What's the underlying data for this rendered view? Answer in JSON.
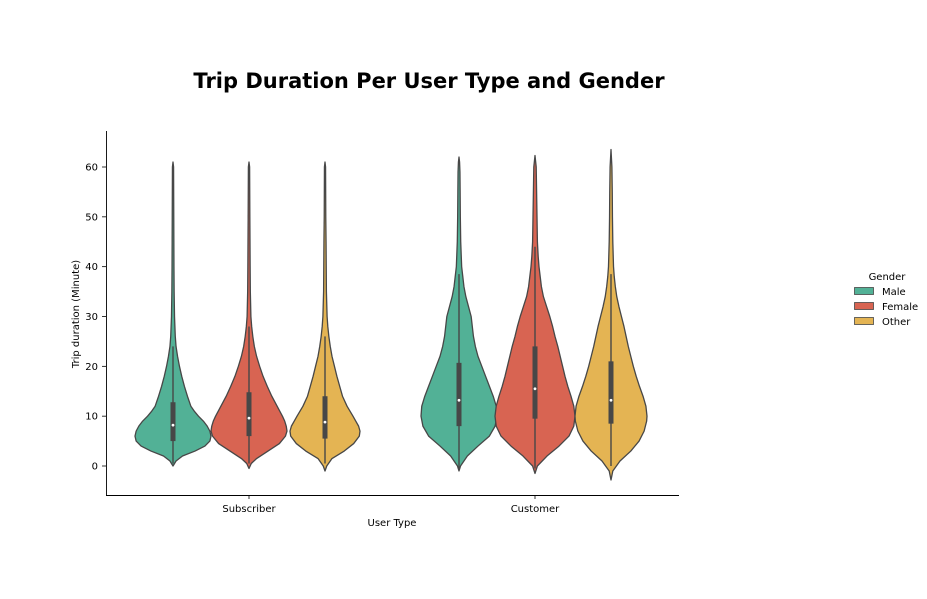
{
  "chart_data": {
    "type": "violin",
    "title": "Trip Duration Per User Type and Gender",
    "xlabel": "User Type",
    "ylabel": "Trip duration (Minute)",
    "categories": [
      "Subscriber",
      "Customer"
    ],
    "ylim": [
      -6,
      67
    ],
    "yticks": [
      0,
      10,
      20,
      30,
      40,
      50,
      60
    ],
    "legend": {
      "title": "Gender",
      "placement": "right"
    },
    "series": [
      {
        "name": "Male",
        "color": "#52b196",
        "violins": [
          {
            "min": 0.0,
            "max": 61.0,
            "median": 8.2,
            "q1": 5.0,
            "q3": 12.8,
            "whisker_low": 0.5,
            "whisker_high": 24.0,
            "profile": [
              [
                0.0,
                0.0
              ],
              [
                1.0,
                0.08
              ],
              [
                2.0,
                0.25
              ],
              [
                3.0,
                0.58
              ],
              [
                4.0,
                0.84
              ],
              [
                5.0,
                0.97
              ],
              [
                6.0,
                1.0
              ],
              [
                7.0,
                0.97
              ],
              [
                8.0,
                0.9
              ],
              [
                9.0,
                0.8
              ],
              [
                10.0,
                0.67
              ],
              [
                11.0,
                0.56
              ],
              [
                12.0,
                0.47
              ],
              [
                14.0,
                0.38
              ],
              [
                16.0,
                0.3
              ],
              [
                18.0,
                0.23
              ],
              [
                20.0,
                0.17
              ],
              [
                22.0,
                0.12
              ],
              [
                24.0,
                0.08
              ],
              [
                26.0,
                0.06
              ],
              [
                30.0,
                0.04
              ],
              [
                35.0,
                0.03
              ],
              [
                40.0,
                0.025
              ],
              [
                50.0,
                0.02
              ],
              [
                60.0,
                0.015
              ],
              [
                61.0,
                0.0
              ]
            ]
          },
          {
            "min": -1.0,
            "max": 62.0,
            "median": 13.2,
            "q1": 8.0,
            "q3": 20.7,
            "whisker_low": -0.5,
            "whisker_high": 38.5,
            "profile": [
              [
                -1.0,
                0.0
              ],
              [
                0.0,
                0.04
              ],
              [
                2.0,
                0.22
              ],
              [
                4.0,
                0.5
              ],
              [
                6.0,
                0.8
              ],
              [
                8.0,
                0.95
              ],
              [
                10.0,
                1.0
              ],
              [
                12.0,
                0.98
              ],
              [
                14.0,
                0.9
              ],
              [
                16.0,
                0.8
              ],
              [
                18.0,
                0.7
              ],
              [
                20.0,
                0.6
              ],
              [
                22.0,
                0.5
              ],
              [
                24.0,
                0.43
              ],
              [
                26.0,
                0.38
              ],
              [
                28.0,
                0.35
              ],
              [
                30.0,
                0.32
              ],
              [
                32.0,
                0.25
              ],
              [
                34.0,
                0.18
              ],
              [
                36.0,
                0.13
              ],
              [
                38.0,
                0.1
              ],
              [
                40.0,
                0.07
              ],
              [
                45.0,
                0.045
              ],
              [
                50.0,
                0.035
              ],
              [
                55.0,
                0.03
              ],
              [
                59.0,
                0.025
              ],
              [
                61.0,
                0.015
              ],
              [
                62.0,
                0.0
              ]
            ]
          }
        ]
      },
      {
        "name": "Female",
        "color": "#d86452",
        "violins": [
          {
            "min": -0.5,
            "max": 61.0,
            "median": 9.6,
            "q1": 6.0,
            "q3": 14.8,
            "whisker_low": 0.5,
            "whisker_high": 28.0,
            "profile": [
              [
                -0.5,
                0.0
              ],
              [
                0.5,
                0.06
              ],
              [
                1.5,
                0.2
              ],
              [
                3.0,
                0.5
              ],
              [
                4.5,
                0.8
              ],
              [
                6.0,
                0.96
              ],
              [
                7.0,
                1.0
              ],
              [
                8.0,
                0.98
              ],
              [
                9.0,
                0.94
              ],
              [
                10.0,
                0.88
              ],
              [
                12.0,
                0.74
              ],
              [
                14.0,
                0.6
              ],
              [
                16.0,
                0.48
              ],
              [
                18.0,
                0.37
              ],
              [
                20.0,
                0.28
              ],
              [
                22.0,
                0.2
              ],
              [
                24.0,
                0.14
              ],
              [
                26.0,
                0.1
              ],
              [
                28.0,
                0.07
              ],
              [
                30.0,
                0.05
              ],
              [
                35.0,
                0.035
              ],
              [
                40.0,
                0.03
              ],
              [
                50.0,
                0.022
              ],
              [
                60.0,
                0.016
              ],
              [
                61.0,
                0.0
              ]
            ]
          },
          {
            "min": -1.5,
            "max": 62.3,
            "median": 15.5,
            "q1": 9.5,
            "q3": 24.0,
            "whisker_low": -0.5,
            "whisker_high": 44.0,
            "profile": [
              [
                -1.5,
                0.0
              ],
              [
                0.0,
                0.06
              ],
              [
                2.0,
                0.3
              ],
              [
                4.0,
                0.6
              ],
              [
                6.0,
                0.85
              ],
              [
                8.0,
                0.97
              ],
              [
                10.0,
                1.0
              ],
              [
                12.0,
                0.97
              ],
              [
                14.0,
                0.9
              ],
              [
                16.0,
                0.82
              ],
              [
                18.0,
                0.75
              ],
              [
                20.0,
                0.69
              ],
              [
                22.0,
                0.63
              ],
              [
                24.0,
                0.57
              ],
              [
                26.0,
                0.5
              ],
              [
                28.0,
                0.44
              ],
              [
                30.0,
                0.37
              ],
              [
                32.0,
                0.29
              ],
              [
                34.0,
                0.21
              ],
              [
                36.0,
                0.16
              ],
              [
                38.0,
                0.13
              ],
              [
                40.0,
                0.1
              ],
              [
                42.0,
                0.08
              ],
              [
                45.0,
                0.06
              ],
              [
                50.0,
                0.05
              ],
              [
                55.0,
                0.04
              ],
              [
                60.0,
                0.03
              ],
              [
                62.3,
                0.0
              ]
            ]
          }
        ]
      },
      {
        "name": "Other",
        "color": "#e4b453",
        "violins": [
          {
            "min": -1.0,
            "max": 61.0,
            "median": 8.8,
            "q1": 5.5,
            "q3": 14.0,
            "whisker_low": 0.5,
            "whisker_high": 26.0,
            "profile": [
              [
                -1.0,
                0.0
              ],
              [
                0.0,
                0.05
              ],
              [
                1.5,
                0.2
              ],
              [
                3.0,
                0.55
              ],
              [
                4.5,
                0.82
              ],
              [
                6.0,
                0.98
              ],
              [
                7.0,
                1.0
              ],
              [
                8.0,
                0.96
              ],
              [
                9.0,
                0.88
              ],
              [
                10.0,
                0.8
              ],
              [
                12.0,
                0.63
              ],
              [
                14.0,
                0.5
              ],
              [
                16.0,
                0.42
              ],
              [
                18.0,
                0.34
              ],
              [
                20.0,
                0.27
              ],
              [
                22.0,
                0.2
              ],
              [
                24.0,
                0.15
              ],
              [
                26.0,
                0.11
              ],
              [
                28.0,
                0.08
              ],
              [
                30.0,
                0.06
              ],
              [
                35.0,
                0.04
              ],
              [
                40.0,
                0.035
              ],
              [
                45.0,
                0.03
              ],
              [
                50.0,
                0.022
              ],
              [
                60.0,
                0.016
              ],
              [
                61.0,
                0.0
              ]
            ]
          },
          {
            "min": -2.8,
            "max": 63.5,
            "median": 13.2,
            "q1": 8.5,
            "q3": 21.0,
            "whisker_low": 0.0,
            "whisker_high": 38.5,
            "profile": [
              [
                -2.8,
                0.0
              ],
              [
                -1.0,
                0.05
              ],
              [
                1.0,
                0.25
              ],
              [
                3.0,
                0.55
              ],
              [
                5.0,
                0.78
              ],
              [
                7.0,
                0.92
              ],
              [
                9.0,
                0.99
              ],
              [
                10.0,
                1.0
              ],
              [
                12.0,
                0.97
              ],
              [
                14.0,
                0.89
              ],
              [
                16.0,
                0.79
              ],
              [
                18.0,
                0.7
              ],
              [
                20.0,
                0.62
              ],
              [
                22.0,
                0.55
              ],
              [
                24.0,
                0.48
              ],
              [
                26.0,
                0.42
              ],
              [
                28.0,
                0.36
              ],
              [
                30.0,
                0.29
              ],
              [
                32.0,
                0.22
              ],
              [
                34.0,
                0.16
              ],
              [
                36.0,
                0.12
              ],
              [
                38.0,
                0.09
              ],
              [
                40.0,
                0.07
              ],
              [
                45.0,
                0.05
              ],
              [
                50.0,
                0.04
              ],
              [
                55.0,
                0.035
              ],
              [
                60.0,
                0.025
              ],
              [
                63.5,
                0.0
              ]
            ]
          }
        ]
      }
    ]
  }
}
